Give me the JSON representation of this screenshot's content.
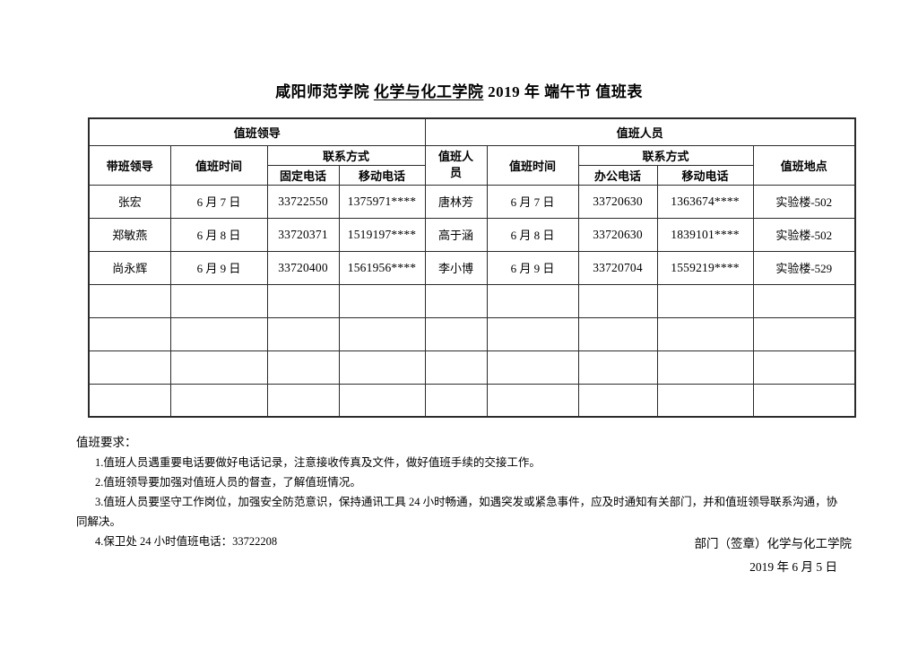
{
  "title": {
    "prefix": "咸阳师范学院",
    "underlined": "化学与化工学院",
    "suffix": "2019 年 端午节 值班表"
  },
  "table": {
    "group_headers": {
      "leaders": "值班领导",
      "staff": "值班人员"
    },
    "columns": {
      "lead_name": "带班领导",
      "lead_time": "值班时间",
      "contact_left": "联系方式",
      "fixed_phone": "固定电话",
      "lead_mobile": "移动电话",
      "staff_name": "值班人员",
      "staff_time": "值班时间",
      "contact_right": "联系方式",
      "office_phone": "办公电话",
      "staff_mobile": "移动电话",
      "location": "值班地点"
    },
    "rows": [
      {
        "lead": "张宏",
        "lead_date": "6 月 7 日",
        "fixed": "33722550",
        "lead_mobile": "1375971****",
        "staff": "唐林芳",
        "staff_date": "6 月 7 日",
        "office": "33720630",
        "staff_mobile": "1363674****",
        "location": "实验楼-502"
      },
      {
        "lead": "郑敏燕",
        "lead_date": "6 月 8 日",
        "fixed": "33720371",
        "lead_mobile": "1519197****",
        "staff": "高于涵",
        "staff_date": "6 月 8 日",
        "office": "33720630",
        "staff_mobile": "1839101****",
        "location": "实验楼-502"
      },
      {
        "lead": "尚永辉",
        "lead_date": "6 月 9 日",
        "fixed": "33720400",
        "lead_mobile": "1561956****",
        "staff": "李小博",
        "staff_date": "6 月 9 日",
        "office": "33720704",
        "staff_mobile": "1559219****",
        "location": "实验楼-529"
      }
    ],
    "empty_row_count": 4
  },
  "notes": {
    "heading": "值班要求：",
    "items": [
      "1.值班人员遇重要电话要做好电话记录，注意接收传真及文件，做好值班手续的交接工作。",
      "2.值班领导要加强对值班人员的督查，了解值班情况。",
      "3.值班人员要坚守工作岗位，加强安全防范意识，保持通讯工具 24 小时畅通，如遇突发或紧急事件，应及时通知有关部门，并和值班领导联系沟通，协同解决。",
      "4.保卫处 24 小时值班电话：33722208"
    ]
  },
  "signature": {
    "department": "部门（签章）化学与化工学院",
    "date": "2019 年 6 月 5 日"
  }
}
